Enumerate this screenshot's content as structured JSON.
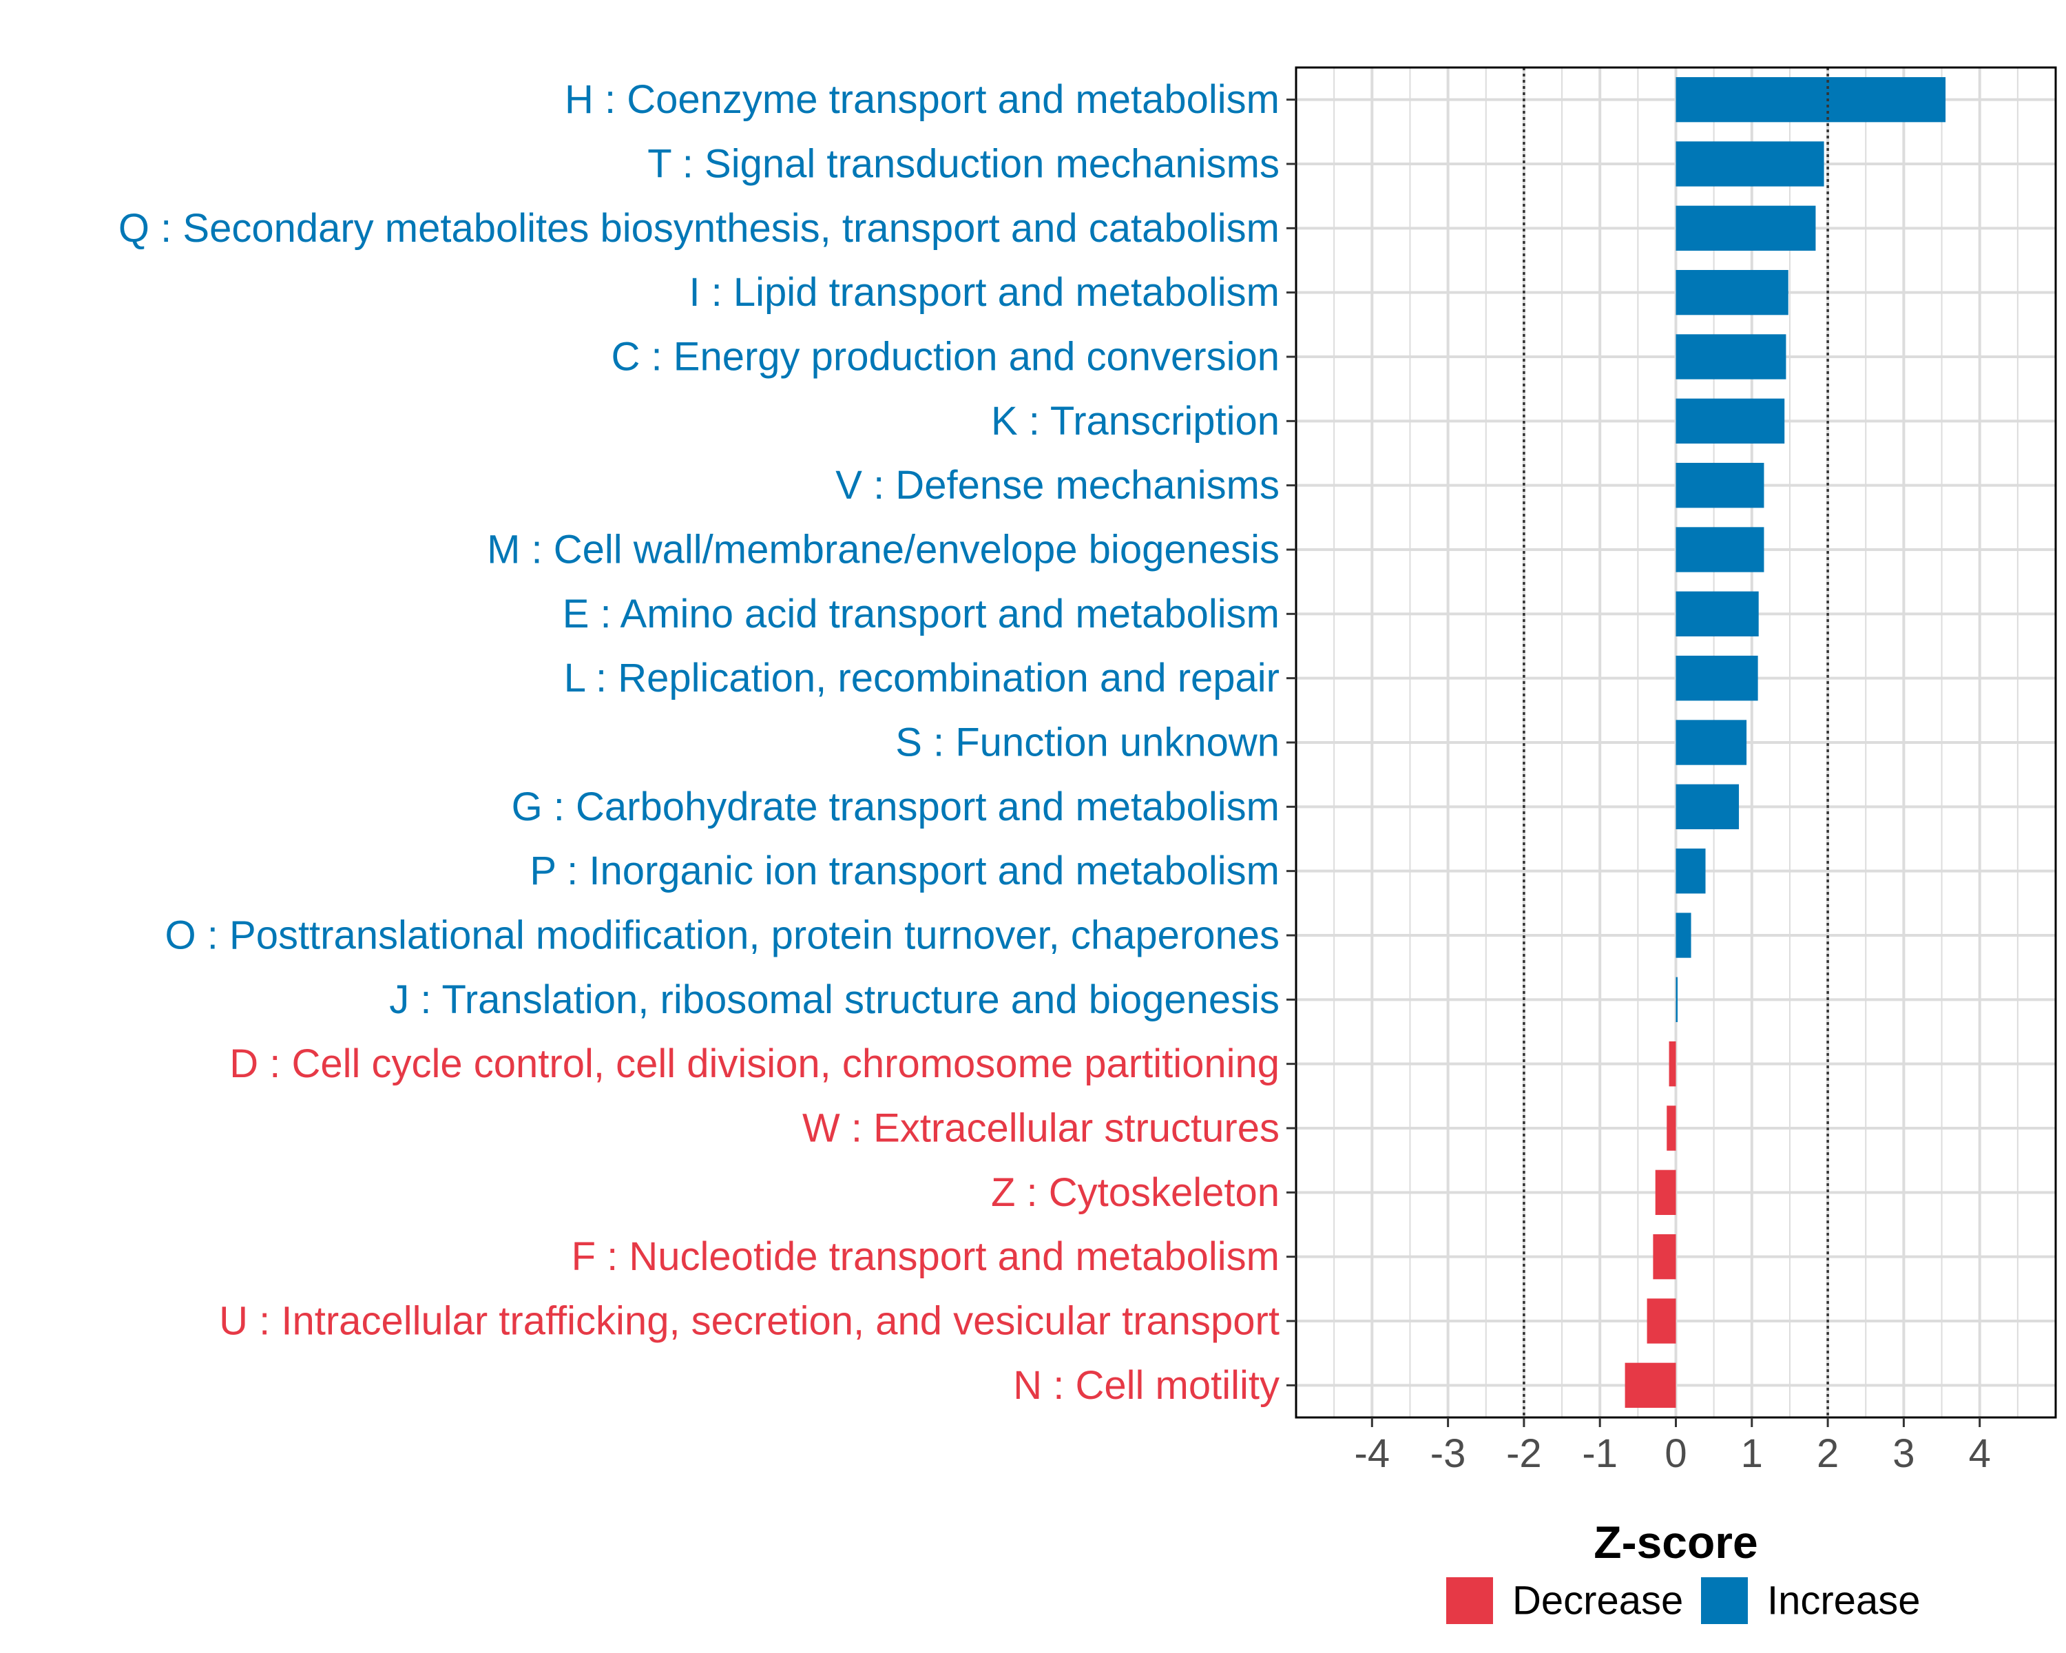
{
  "chart_data": {
    "type": "bar",
    "orientation": "horizontal",
    "title": "",
    "xlabel": "Z-score",
    "ylabel": "",
    "xlim": [
      -5,
      5
    ],
    "x_ticks": [
      -4,
      -3,
      -2,
      -1,
      0,
      1,
      2,
      3,
      4
    ],
    "x_tick_labels": [
      "-4",
      "-3",
      "-2",
      "-1",
      "0",
      "1",
      "2",
      "3",
      "4"
    ],
    "reference_lines": [
      -2,
      2
    ],
    "grid": true,
    "colors": {
      "Increase": "#0077b6",
      "Decrease": "#e63946"
    },
    "categories": [
      "H : Coenzyme transport and metabolism",
      "T : Signal transduction mechanisms",
      "Q : Secondary metabolites biosynthesis, transport and catabolism",
      "I : Lipid transport and metabolism",
      "C : Energy production and conversion",
      "K : Transcription",
      "V : Defense mechanisms",
      "M : Cell wall/membrane/envelope biogenesis",
      "E : Amino acid transport and metabolism",
      "L : Replication, recombination and repair",
      "S : Function unknown",
      "G : Carbohydrate transport and metabolism",
      "P : Inorganic ion transport and metabolism",
      "O : Posttranslational modification, protein turnover, chaperones",
      "J : Translation, ribosomal structure and biogenesis",
      "D : Cell cycle control, cell division, chromosome partitioning",
      "W : Extracellular structures",
      "Z : Cytoskeleton",
      "F : Nucleotide transport and metabolism",
      "U : Intracellular trafficking, secretion, and vesicular transport",
      "N : Cell motility"
    ],
    "values": [
      3.55,
      1.95,
      1.84,
      1.48,
      1.45,
      1.43,
      1.16,
      1.16,
      1.09,
      1.08,
      0.93,
      0.83,
      0.39,
      0.2,
      0.02,
      -0.09,
      -0.12,
      -0.27,
      -0.3,
      -0.38,
      -0.67
    ],
    "groups": [
      "Increase",
      "Increase",
      "Increase",
      "Increase",
      "Increase",
      "Increase",
      "Increase",
      "Increase",
      "Increase",
      "Increase",
      "Increase",
      "Increase",
      "Increase",
      "Increase",
      "Increase",
      "Decrease",
      "Decrease",
      "Decrease",
      "Decrease",
      "Decrease",
      "Decrease"
    ],
    "legend": {
      "placement": "bottom",
      "entries": [
        "Decrease",
        "Increase"
      ]
    }
  }
}
